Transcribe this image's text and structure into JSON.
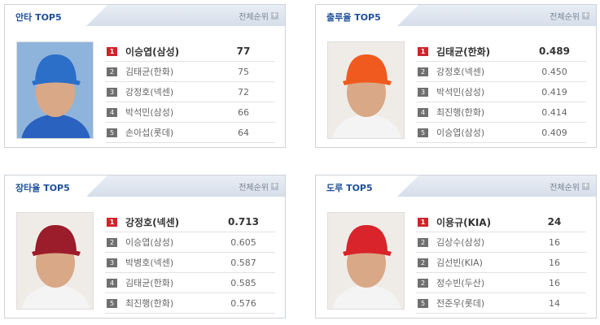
{
  "more_label": "전체순위",
  "panels": [
    {
      "title": "안타 TOP5",
      "photo": "samsung-player",
      "cap": "#2b6fc9",
      "rows": [
        {
          "rank": "1",
          "name": "이승엽(삼성)",
          "value": "77"
        },
        {
          "rank": "2",
          "name": "김태균(한화)",
          "value": "75"
        },
        {
          "rank": "3",
          "name": "강정호(넥센)",
          "value": "72"
        },
        {
          "rank": "4",
          "name": "박석민(삼성)",
          "value": "66"
        },
        {
          "rank": "5",
          "name": "손아섭(롯데)",
          "value": "64"
        }
      ]
    },
    {
      "title": "출루율 TOP5",
      "photo": "hanwha-player",
      "cap": "#f05a1e",
      "rows": [
        {
          "rank": "1",
          "name": "김태균(한화)",
          "value": "0.489"
        },
        {
          "rank": "2",
          "name": "강정호(넥센)",
          "value": "0.450"
        },
        {
          "rank": "3",
          "name": "박석민(삼성)",
          "value": "0.419"
        },
        {
          "rank": "4",
          "name": "최진행(한화)",
          "value": "0.414"
        },
        {
          "rank": "5",
          "name": "이승엽(삼성)",
          "value": "0.409"
        }
      ]
    },
    {
      "title": "장타율 TOP5",
      "photo": "nexen-player",
      "cap": "#9b1c2a",
      "rows": [
        {
          "rank": "1",
          "name": "강정호(넥센)",
          "value": "0.713"
        },
        {
          "rank": "2",
          "name": "이승엽(삼성)",
          "value": "0.605"
        },
        {
          "rank": "3",
          "name": "박병호(넥센)",
          "value": "0.587"
        },
        {
          "rank": "4",
          "name": "김태균(한화)",
          "value": "0.585"
        },
        {
          "rank": "5",
          "name": "최진행(한화)",
          "value": "0.576"
        }
      ]
    },
    {
      "title": "도루 TOP5",
      "photo": "kia-player",
      "cap": "#d8242a",
      "rows": [
        {
          "rank": "1",
          "name": "이용규(KIA)",
          "value": "24"
        },
        {
          "rank": "2",
          "name": "김상수(삼성)",
          "value": "16"
        },
        {
          "rank": "2",
          "name": "김선빈(KIA)",
          "value": "16"
        },
        {
          "rank": "2",
          "name": "정수빈(두산)",
          "value": "16"
        },
        {
          "rank": "5",
          "name": "전준우(롯데)",
          "value": "14"
        }
      ]
    }
  ]
}
